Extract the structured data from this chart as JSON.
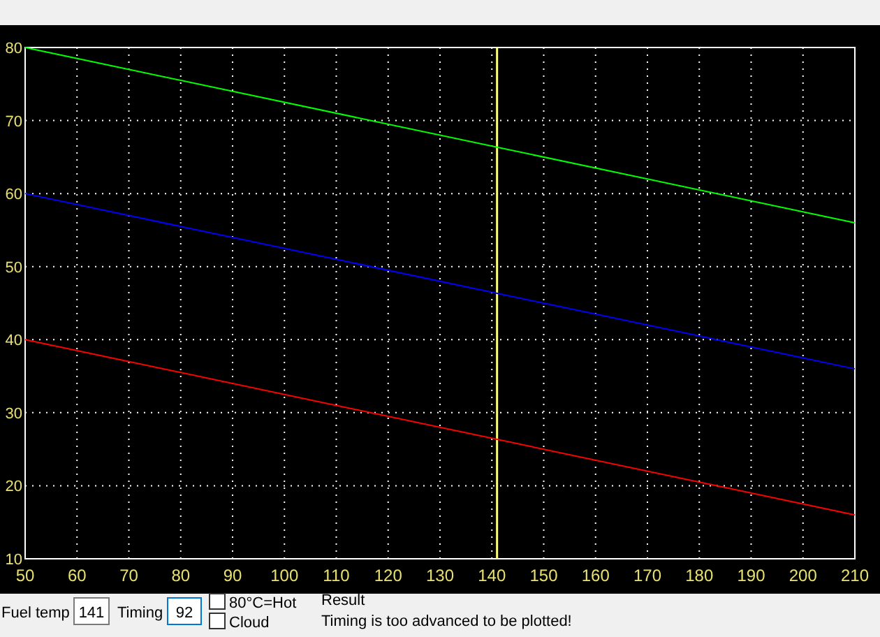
{
  "chart_data": {
    "type": "line",
    "x": [
      50,
      210
    ],
    "series": [
      {
        "color": "#00ff00",
        "values": [
          80,
          56
        ]
      },
      {
        "color": "#0000ff",
        "values": [
          60,
          36
        ]
      },
      {
        "color": "#ff0000",
        "values": [
          40,
          16
        ]
      }
    ],
    "xlim": [
      50,
      210
    ],
    "xticks": [
      50,
      60,
      70,
      80,
      90,
      100,
      110,
      120,
      130,
      140,
      150,
      160,
      170,
      180,
      190,
      200,
      210
    ],
    "ylim": [
      10,
      80
    ],
    "yticks": [
      10,
      20,
      30,
      40,
      50,
      60,
      70,
      80
    ],
    "grid": true,
    "ref_lines": [
      {
        "axis": "x",
        "value": 141,
        "color": "#ffff80"
      }
    ],
    "annotations": [
      "Fuel temp",
      "141",
      "Timing",
      "92",
      "80°C=Hot",
      "Cloud",
      "Result",
      "Timing is too advanced to be plotted!"
    ]
  }
}
